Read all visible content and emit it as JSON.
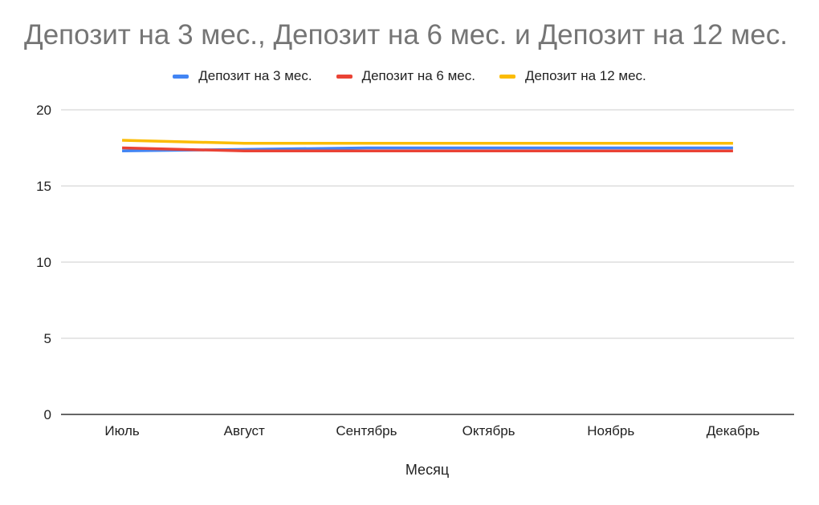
{
  "chart_data": {
    "type": "line",
    "title": "Депозит на 3 мес., Депозит на 6 мес. и Депозит на 12 мес.",
    "xlabel": "Месяц",
    "ylabel": "",
    "categories": [
      "Июль",
      "Август",
      "Сентябрь",
      "Октябрь",
      "Ноябрь",
      "Декабрь"
    ],
    "series": [
      {
        "name": "Депозит на 3 мес.",
        "color": "#4285f4",
        "values": [
          17.3,
          17.4,
          17.5,
          17.5,
          17.5,
          17.5
        ]
      },
      {
        "name": "Депозит на 6 мес.",
        "color": "#ea4335",
        "values": [
          17.5,
          17.3,
          17.3,
          17.3,
          17.3,
          17.3
        ]
      },
      {
        "name": "Депозит на 12 мес.",
        "color": "#fbbc04",
        "values": [
          18.0,
          17.8,
          17.8,
          17.8,
          17.8,
          17.8
        ]
      }
    ],
    "ylim": [
      0,
      20
    ],
    "yticks": [
      0,
      5,
      10,
      15,
      20
    ],
    "grid": true,
    "legend_position": "top"
  }
}
